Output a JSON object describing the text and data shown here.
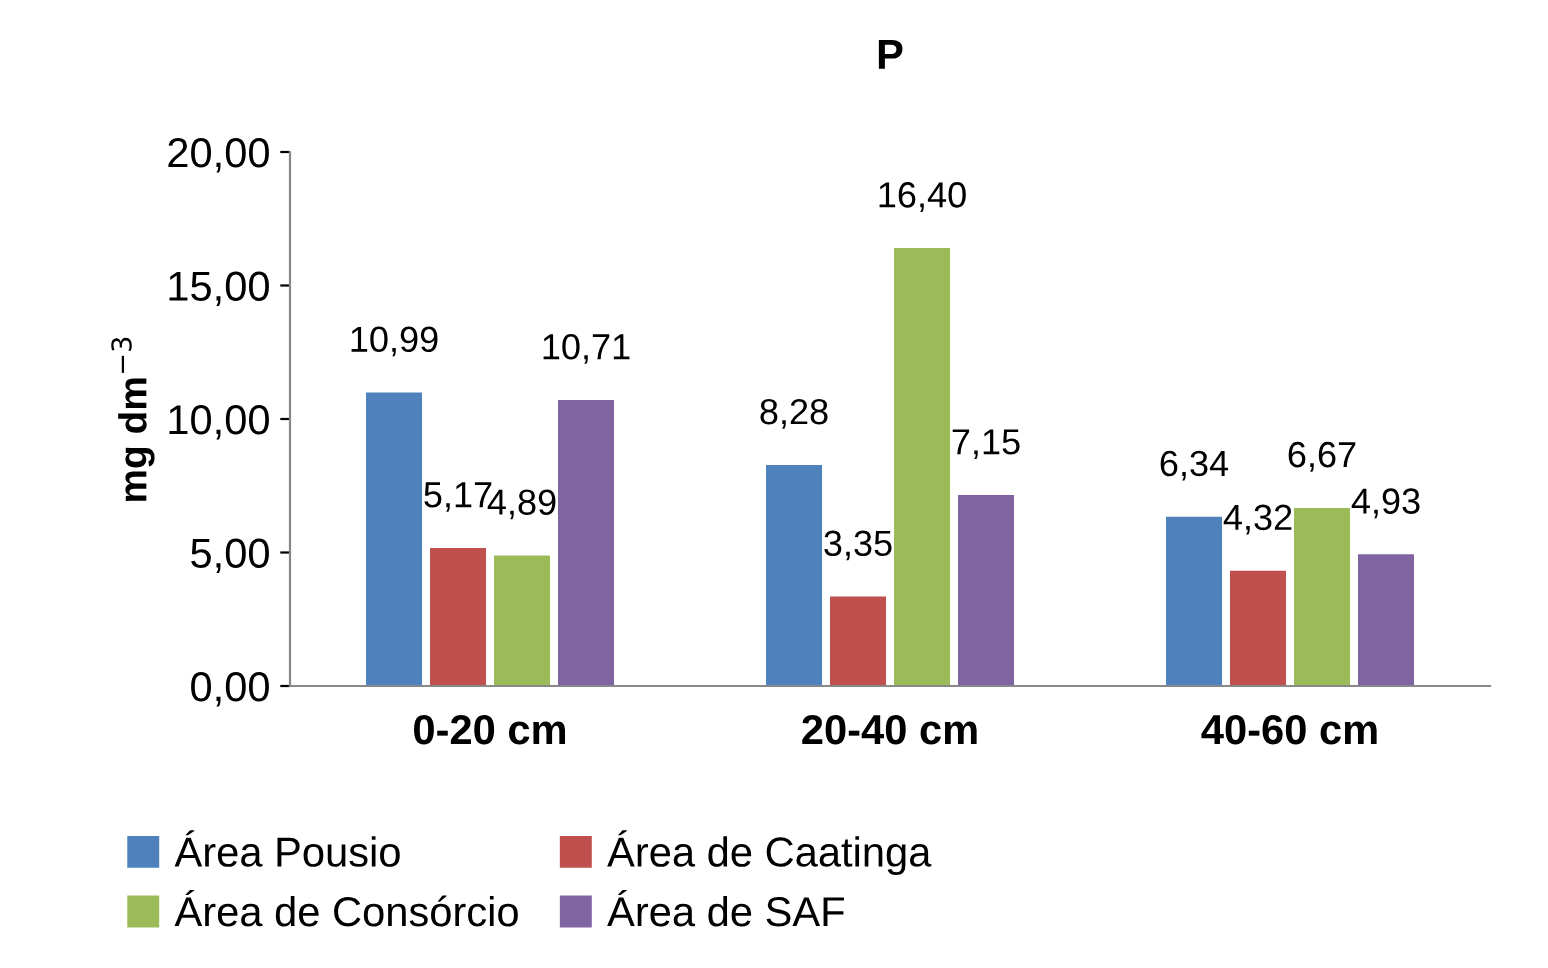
{
  "chart_data": {
    "type": "bar",
    "title": "P",
    "ylabel": "mg dm$^{−3}$",
    "categories": [
      "0-20 cm",
      "20-40 cm",
      "40-60 cm"
    ],
    "series": [
      {
        "name": "Área Pousio",
        "color": "#4f81bd",
        "values": [
          10.99,
          8.28,
          6.34
        ],
        "value_labels": [
          "10,99",
          "8,28",
          "6,34"
        ]
      },
      {
        "name": "Área de Caatinga",
        "color": "#c0504d",
        "values": [
          5.17,
          3.35,
          4.32
        ],
        "value_labels": [
          "5,17",
          "3,35",
          "4,32"
        ]
      },
      {
        "name": "Área de Consórcio",
        "color": "#9bbb59",
        "values": [
          4.89,
          16.4,
          6.67
        ],
        "value_labels": [
          "4,89",
          "16,40",
          "6,67"
        ]
      },
      {
        "name": "Área de SAF",
        "color": "#8064a2",
        "values": [
          10.71,
          7.15,
          4.93
        ],
        "value_labels": [
          "10,71",
          "7,15",
          "4,93"
        ]
      }
    ],
    "ylim": [
      0,
      20
    ],
    "yticks": [
      {
        "value": 0,
        "label": "0,00"
      },
      {
        "value": 5,
        "label": "5,00"
      },
      {
        "value": 10,
        "label": "10,00"
      },
      {
        "value": 15,
        "label": "15,00"
      },
      {
        "value": 20,
        "label": "20,00"
      }
    ],
    "grid": false,
    "legend": "bottom"
  }
}
